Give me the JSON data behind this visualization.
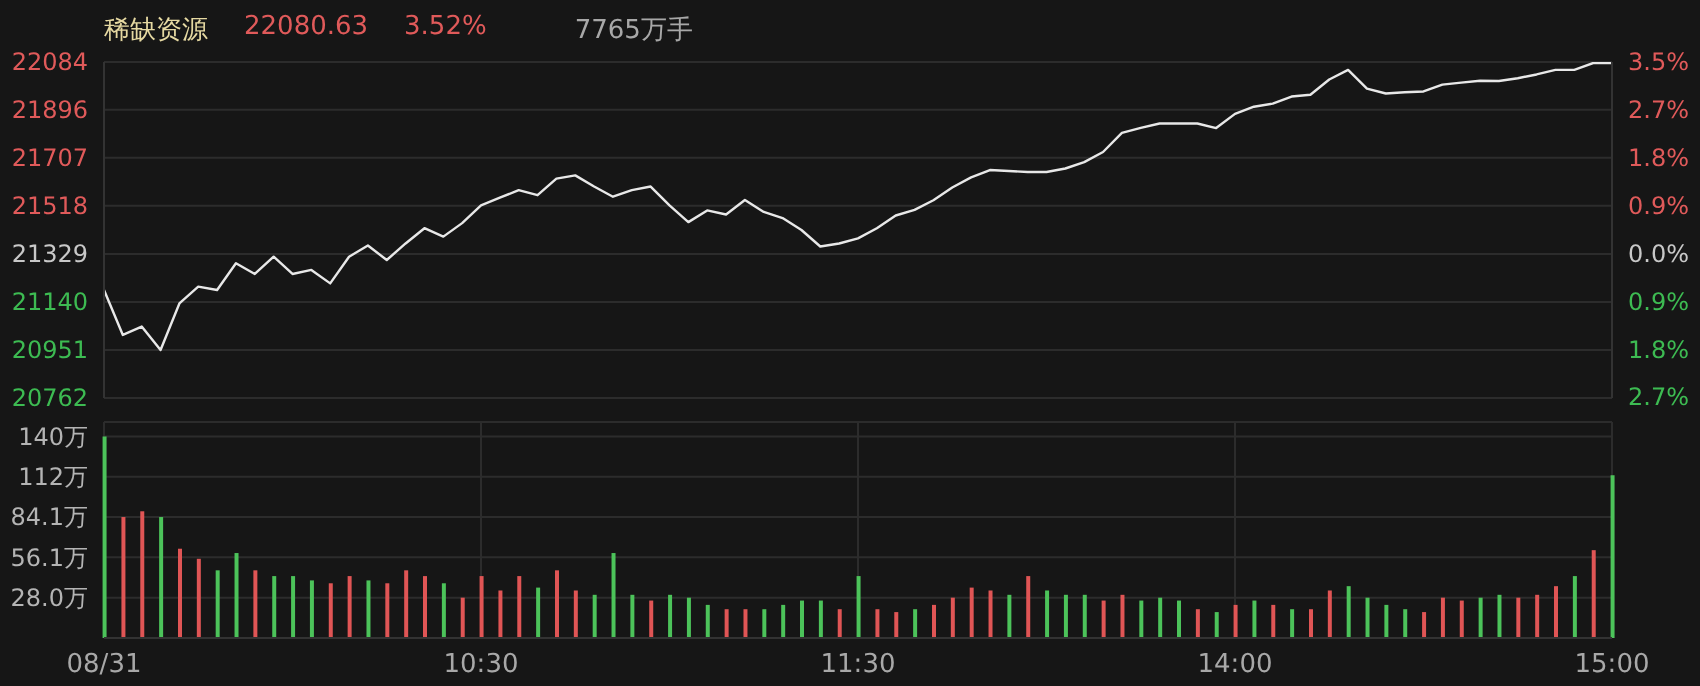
{
  "chart_data": [
    {
      "type": "line",
      "title": "稀缺资源",
      "annotations": [
        "22080.63",
        "3.52%",
        "7765万手"
      ],
      "categories": [
        null,
        null,
        null,
        null,
        null,
        null,
        null,
        null,
        null,
        null,
        null,
        null,
        null,
        null,
        null,
        null,
        null,
        null,
        null,
        null,
        null,
        null,
        null,
        null,
        null,
        null,
        null,
        null,
        null,
        null,
        null,
        null,
        null,
        null,
        null,
        null,
        null,
        null,
        null,
        null,
        null,
        null,
        null,
        null,
        null,
        null,
        null,
        null,
        null,
        null,
        null,
        null,
        null,
        null,
        null,
        null,
        null,
        null,
        null,
        null,
        null,
        null,
        null,
        null,
        null,
        null,
        null,
        null,
        null,
        null,
        null,
        null,
        null,
        null,
        null,
        null,
        null,
        null,
        null,
        null,
        null
      ],
      "values": [
        21187,
        21010,
        21043,
        20951,
        21134,
        21200,
        21187,
        21292,
        21250,
        21318,
        21250,
        21266,
        21213,
        21318,
        21362,
        21305,
        21370,
        21430,
        21397,
        21450,
        21520,
        21550,
        21580,
        21560,
        21625,
        21638,
        21594,
        21554,
        21580,
        21594,
        21520,
        21454,
        21500,
        21484,
        21541,
        21494,
        21470,
        21423,
        21358,
        21370,
        21390,
        21430,
        21480,
        21502,
        21540,
        21590,
        21630,
        21659,
        21655,
        21651,
        21651,
        21665,
        21690,
        21730,
        21805,
        21825,
        21842,
        21842,
        21842,
        21824,
        21880,
        21908,
        21920,
        21948,
        21955,
        22015,
        22053,
        21979,
        21960,
        21965,
        21968,
        21995,
        22003,
        22010,
        22009,
        22020,
        22035,
        22053,
        22053,
        22080,
        22080
      ],
      "color": "#e8e8e8",
      "ylim": [
        20762,
        22084
      ],
      "yticks": [
        20762,
        20951,
        21140,
        21329,
        21518,
        21707,
        21896,
        22084
      ],
      "y2lim": [
        -2.66,
        3.54
      ],
      "y2ticks": [
        {
          "value": -2.65,
          "label": "2.7%"
        },
        {
          "value": -1.77,
          "label": "1.8%"
        },
        {
          "value": -0.88,
          "label": "0.9%"
        },
        {
          "value": 0,
          "label": "0.0%"
        },
        {
          "value": 0.88,
          "label": "0.9%"
        },
        {
          "value": 1.77,
          "label": "1.8%"
        },
        {
          "value": 2.65,
          "label": "2.7%"
        },
        {
          "value": 3.54,
          "label": "3.5%"
        }
      ],
      "grid": true,
      "tick_labels": "y"
    },
    {
      "type": "bar",
      "categories": [
        "08/31",
        null,
        null,
        null,
        null,
        null,
        null,
        null,
        null,
        null,
        null,
        null,
        null,
        null,
        null,
        null,
        null,
        null,
        null,
        null,
        "10:30",
        null,
        null,
        null,
        null,
        null,
        null,
        null,
        null,
        null,
        null,
        null,
        null,
        null,
        null,
        null,
        null,
        null,
        null,
        null,
        "11:30",
        null,
        null,
        null,
        null,
        null,
        null,
        null,
        null,
        null,
        null,
        null,
        null,
        null,
        null,
        null,
        null,
        null,
        null,
        null,
        "14:00",
        null,
        null,
        null,
        null,
        null,
        null,
        null,
        null,
        null,
        null,
        null,
        null,
        null,
        null,
        null,
        null,
        null,
        null,
        null,
        "15:00"
      ],
      "values": [
        140,
        84,
        88,
        84,
        62,
        55,
        47,
        59,
        47,
        43,
        43,
        40,
        38,
        43,
        40,
        38,
        47,
        43,
        38,
        28,
        43,
        33,
        43,
        35,
        47,
        33,
        30,
        59,
        30,
        26,
        30,
        28,
        23,
        20,
        20,
        20,
        23,
        26,
        26,
        20,
        43,
        20,
        18,
        20,
        23,
        28,
        35,
        33,
        30,
        43,
        33,
        30,
        30,
        26,
        30,
        26,
        28,
        26,
        20,
        18,
        23,
        26,
        23,
        20,
        20,
        33,
        36,
        28,
        23,
        20,
        18,
        28,
        26,
        28,
        30,
        28,
        30,
        36,
        43,
        61,
        113
      ],
      "colors": [
        "#4cc35a",
        "#e05555",
        "#e05555",
        "#4cc35a",
        "#e05555",
        "#e05555",
        "#4cc35a",
        "#4cc35a",
        "#e05555",
        "#4cc35a",
        "#4cc35a",
        "#4cc35a",
        "#e05555",
        "#e05555",
        "#4cc35a",
        "#e05555",
        "#e05555",
        "#e05555",
        "#4cc35a",
        "#e05555",
        "#e05555",
        "#e05555",
        "#e05555",
        "#4cc35a",
        "#e05555",
        "#e05555",
        "#4cc35a",
        "#4cc35a",
        "#4cc35a",
        "#e05555",
        "#4cc35a",
        "#4cc35a",
        "#4cc35a",
        "#e05555",
        "#e05555",
        "#4cc35a",
        "#4cc35a",
        "#4cc35a",
        "#4cc35a",
        "#e05555",
        "#4cc35a",
        "#e05555",
        "#e05555",
        "#4cc35a",
        "#e05555",
        "#e05555",
        "#e05555",
        "#e05555",
        "#4cc35a",
        "#e05555",
        "#4cc35a",
        "#4cc35a",
        "#4cc35a",
        "#e05555",
        "#e05555",
        "#4cc35a",
        "#4cc35a",
        "#4cc35a",
        "#e05555",
        "#4cc35a",
        "#e05555",
        "#4cc35a",
        "#e05555",
        "#4cc35a",
        "#e05555",
        "#e05555",
        "#4cc35a",
        "#4cc35a",
        "#4cc35a",
        "#4cc35a",
        "#e05555",
        "#e05555",
        "#e05555",
        "#4cc35a",
        "#4cc35a",
        "#e05555",
        "#e05555",
        "#e05555",
        "#4cc35a",
        "#e05555",
        "#4cc35a"
      ],
      "ylim": [
        0,
        150
      ],
      "yticks": [
        {
          "value": 28.0,
          "label": "28.0万"
        },
        {
          "value": 56.1,
          "label": "56.1万"
        },
        {
          "value": 84.1,
          "label": "84.1万"
        },
        {
          "value": 112,
          "label": "112万"
        },
        {
          "value": 140,
          "label": "140万"
        }
      ],
      "grid": true
    }
  ]
}
